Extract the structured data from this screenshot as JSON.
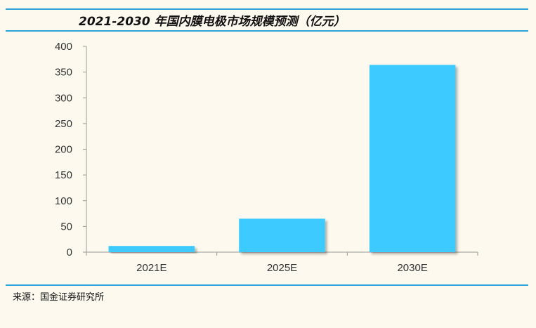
{
  "title": "2021-2030 年国内膜电极市场规模预测（亿元）",
  "source": "来源：国金证券研究所",
  "colors": {
    "accent": "#2fa3d8",
    "bar": "#3dcbff",
    "background": "#fdf9ee"
  },
  "chart_data": {
    "type": "bar",
    "title": "2021-2030 年国内膜电极市场规模预测（亿元）",
    "xlabel": "",
    "ylabel": "",
    "categories": [
      "2021E",
      "2025E",
      "2030E"
    ],
    "values": [
      12,
      65,
      364
    ],
    "ylim": [
      0,
      400
    ],
    "yticks": [
      0,
      50,
      100,
      150,
      200,
      250,
      300,
      350,
      400
    ],
    "grid": false,
    "legend": "none"
  }
}
